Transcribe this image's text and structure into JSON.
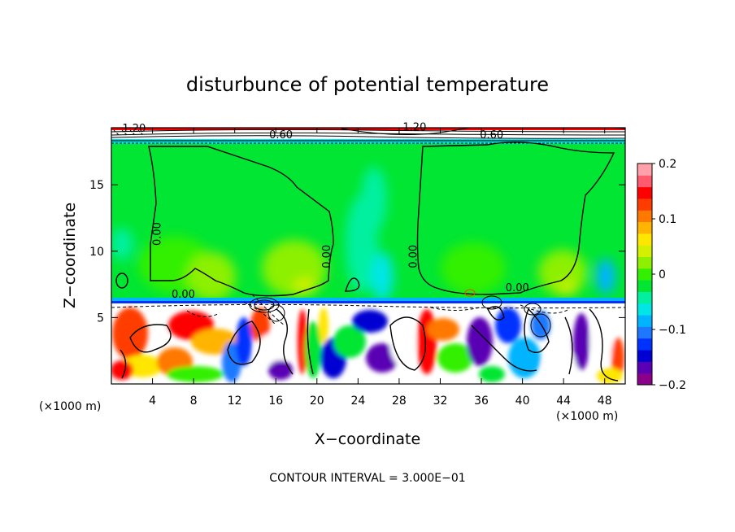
{
  "chart_data": {
    "type": "heatmap",
    "title": "disturbunce of potential temperature",
    "xlabel": "X−coordinate",
    "ylabel": "Z−coordinate",
    "x_unit_left": "(×1000 m)",
    "x_unit_right": "(×1000 m)",
    "footer": "CONTOUR INTERVAL = 3.000E−01",
    "xlim": [
      0,
      50
    ],
    "ylim": [
      0,
      19.3
    ],
    "xticks": [
      {
        "value": 4,
        "label": "4"
      },
      {
        "value": 8,
        "label": "8"
      },
      {
        "value": 12,
        "label": "12"
      },
      {
        "value": 16,
        "label": "16"
      },
      {
        "value": 20,
        "label": "20"
      },
      {
        "value": 24,
        "label": "24"
      },
      {
        "value": 28,
        "label": "28"
      },
      {
        "value": 32,
        "label": "32"
      },
      {
        "value": 36,
        "label": "36"
      },
      {
        "value": 40,
        "label": "40"
      },
      {
        "value": 44,
        "label": "44"
      },
      {
        "value": 48,
        "label": "48"
      }
    ],
    "yticks": [
      {
        "value": 5,
        "label": "5"
      },
      {
        "value": 10,
        "label": "10"
      },
      {
        "value": 15,
        "label": "15"
      }
    ],
    "colorbar": {
      "range": [
        -0.2,
        0.2
      ],
      "ticks": [
        {
          "value": 0.2,
          "label": "0.2"
        },
        {
          "value": 0.1,
          "label": "0.1"
        },
        {
          "value": 0,
          "label": "0"
        },
        {
          "value": -0.1,
          "label": "−0.1"
        },
        {
          "value": -0.2,
          "label": "−0.2"
        }
      ],
      "colors": [
        "#8b008b",
        "#5a00b4",
        "#0000d2",
        "#0032ff",
        "#1e78ff",
        "#00b4ff",
        "#00e6e6",
        "#00f0a0",
        "#00e632",
        "#32f000",
        "#8cf000",
        "#d2f000",
        "#ffe600",
        "#ffb400",
        "#ff7800",
        "#ff3c00",
        "#ff0000",
        "#ff5a6e",
        "#ffa0aa"
      ]
    },
    "contour_labels": [
      {
        "x": 2.2,
        "y": 19.0,
        "text": "1.20"
      },
      {
        "x": 29.5,
        "y": 19.1,
        "text": "1.20"
      },
      {
        "x": 16.5,
        "y": 18.5,
        "text": "0.60"
      },
      {
        "x": 37.0,
        "y": 18.5,
        "text": "0.60"
      },
      {
        "x": 4.8,
        "y": 11.3,
        "text": "0.00"
      },
      {
        "x": 21.3,
        "y": 9.6,
        "text": "0.00"
      },
      {
        "x": 29.7,
        "y": 9.6,
        "text": "0.00"
      },
      {
        "x": 7.0,
        "y": 6.5,
        "text": "0.00"
      },
      {
        "x": 39.5,
        "y": 7.0,
        "text": "0.00"
      }
    ],
    "field_regions": [
      {
        "name": "upper-stratified-layer",
        "z_range": [
          18.6,
          19.3
        ],
        "value": 0.2
      },
      {
        "name": "stable-layer",
        "z_range": [
          6.5,
          18.6
        ],
        "value": 0.0
      },
      {
        "name": "turbulent-mixed-layer",
        "z_range": [
          0,
          6.5
        ],
        "value_range": [
          -0.2,
          0.2
        ]
      }
    ]
  }
}
